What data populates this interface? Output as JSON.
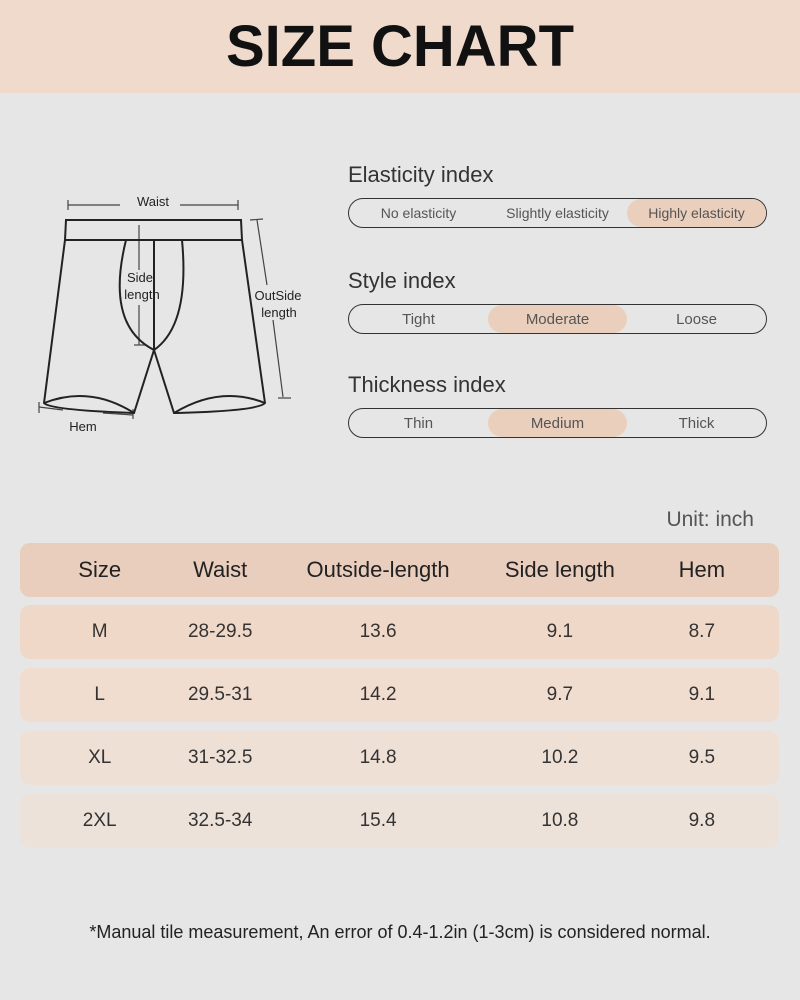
{
  "title": "SIZE CHART",
  "diagram": {
    "labels": {
      "waist": "Waist",
      "side_line1": "Side",
      "side_line2": "length",
      "outside_line1": "OutSide",
      "outside_line2": "length",
      "hem": "Hem"
    }
  },
  "indices": [
    {
      "title": "Elasticity index",
      "options": [
        "No elasticity",
        "Slightly elasticity",
        "Highly elasticity"
      ],
      "selected": 2
    },
    {
      "title": "Style index",
      "options": [
        "Tight",
        "Moderate",
        "Loose"
      ],
      "selected": 1
    },
    {
      "title": "Thickness index",
      "options": [
        "Thin",
        "Medium",
        "Thick"
      ],
      "selected": 1
    }
  ],
  "unit": "Unit: inch",
  "table": {
    "headers": [
      "Size",
      "Waist",
      "Outside-length",
      "Side length",
      "Hem"
    ],
    "rows": [
      [
        "M",
        "28-29.5",
        "13.6",
        "9.1",
        "8.7"
      ],
      [
        "L",
        "29.5-31",
        "14.2",
        "9.7",
        "9.1"
      ],
      [
        "XL",
        "31-32.5",
        "14.8",
        "10.2",
        "9.5"
      ],
      [
        "2XL",
        "32.5-34",
        "15.4",
        "10.8",
        "9.8"
      ]
    ]
  },
  "colors": {
    "header_bg": "#efdacb",
    "highlight": "#ebcfbd",
    "row_colors": [
      "#f0d8c8",
      "#f1ddd0",
      "#efe0d6",
      "#ede2da"
    ]
  },
  "note": "*Manual tile measurement, An error of 0.4-1.2in (1-3cm) is considered normal."
}
